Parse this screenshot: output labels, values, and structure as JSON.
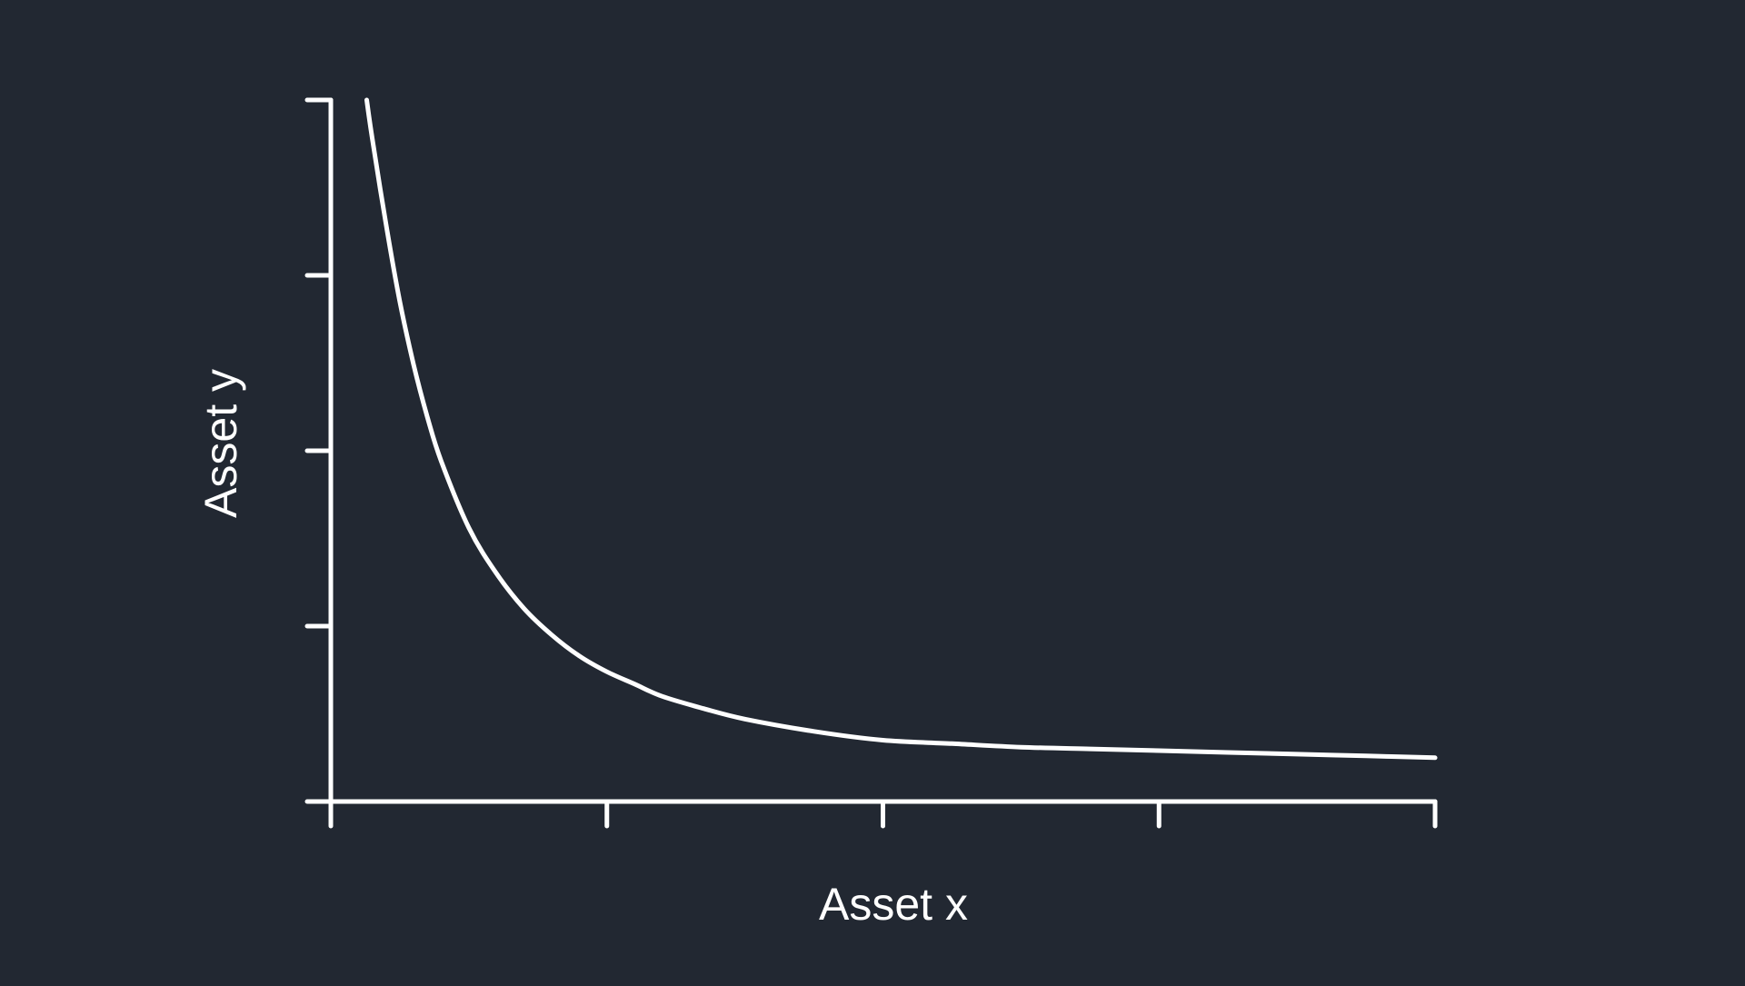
{
  "colors": {
    "background": "#222832",
    "foreground": "#ffffff"
  },
  "chart_data": {
    "type": "line",
    "title": "",
    "xlabel": "Asset x",
    "ylabel": "Asset y",
    "xlim": [
      0,
      4
    ],
    "ylim": [
      0,
      4
    ],
    "x_ticks": [
      0,
      1,
      2,
      3,
      4
    ],
    "y_ticks": [
      0,
      1,
      2,
      3,
      4
    ],
    "tick_labels_shown": false,
    "grid": false,
    "legend": "none",
    "series": [
      {
        "x": [
          0.13,
          0.15,
          0.2,
          0.25,
          0.3,
          0.35,
          0.4,
          0.5,
          0.6,
          0.7,
          0.8,
          0.9,
          1.0,
          1.1,
          1.2,
          1.35,
          1.5,
          1.75,
          2.0,
          2.25,
          2.5,
          2.75,
          3.0,
          3.25,
          3.5,
          3.75,
          4.0
        ],
        "y": [
          4.0,
          3.78,
          3.29,
          2.85,
          2.49,
          2.19,
          1.94,
          1.56,
          1.3,
          1.1,
          0.95,
          0.83,
          0.74,
          0.67,
          0.6,
          0.53,
          0.47,
          0.4,
          0.35,
          0.33,
          0.31,
          0.3,
          0.29,
          0.28,
          0.27,
          0.26,
          0.25
        ]
      }
    ]
  }
}
